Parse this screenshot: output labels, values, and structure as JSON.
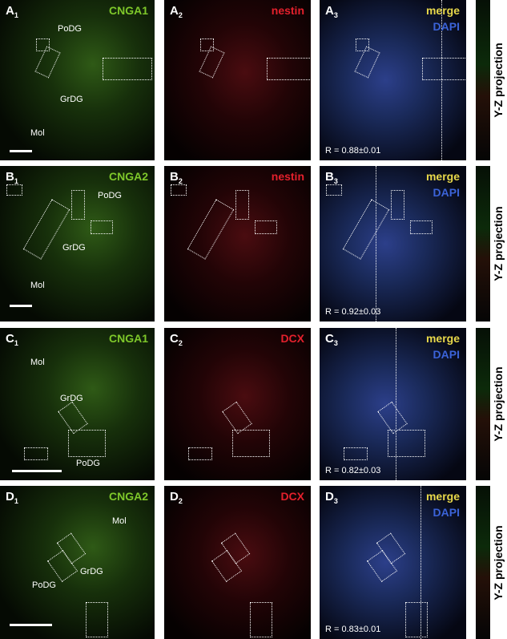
{
  "rows": [
    {
      "panels": [
        {
          "letter": "A",
          "sub": "1",
          "channels": [
            "CNGA1"
          ],
          "regions": [
            "PoDG",
            "GrDG",
            "Mol"
          ]
        },
        {
          "letter": "A",
          "sub": "2",
          "channels": [
            "nestin"
          ]
        },
        {
          "letter": "A",
          "sub": "3",
          "channels": [
            "merge",
            "DAPI"
          ],
          "stat": "R = 0.88±0.01"
        }
      ],
      "projection": "Y-Z projection"
    },
    {
      "panels": [
        {
          "letter": "B",
          "sub": "1",
          "channels": [
            "CNGA2"
          ],
          "regions": [
            "PoDG",
            "GrDG",
            "Mol"
          ]
        },
        {
          "letter": "B",
          "sub": "2",
          "channels": [
            "nestin"
          ]
        },
        {
          "letter": "B",
          "sub": "3",
          "channels": [
            "merge",
            "DAPI"
          ],
          "stat": "R = 0.92±0.03"
        }
      ],
      "projection": "Y-Z projection"
    },
    {
      "panels": [
        {
          "letter": "C",
          "sub": "1",
          "channels": [
            "CNGA1"
          ],
          "regions": [
            "Mol",
            "GrDG",
            "PoDG"
          ]
        },
        {
          "letter": "C",
          "sub": "2",
          "channels": [
            "DCX"
          ]
        },
        {
          "letter": "C",
          "sub": "3",
          "channels": [
            "merge",
            "DAPI"
          ],
          "stat": "R = 0.82±0.03"
        }
      ],
      "projection": "Y-Z projection"
    },
    {
      "panels": [
        {
          "letter": "D",
          "sub": "1",
          "channels": [
            "CNGA2"
          ],
          "regions": [
            "Mol",
            "GrDG",
            "PoDG"
          ]
        },
        {
          "letter": "D",
          "sub": "2",
          "channels": [
            "DCX"
          ]
        },
        {
          "letter": "D",
          "sub": "3",
          "channels": [
            "merge",
            "DAPI"
          ],
          "stat": "R = 0.83±0.01"
        }
      ],
      "projection": "Y-Z projection"
    }
  ]
}
